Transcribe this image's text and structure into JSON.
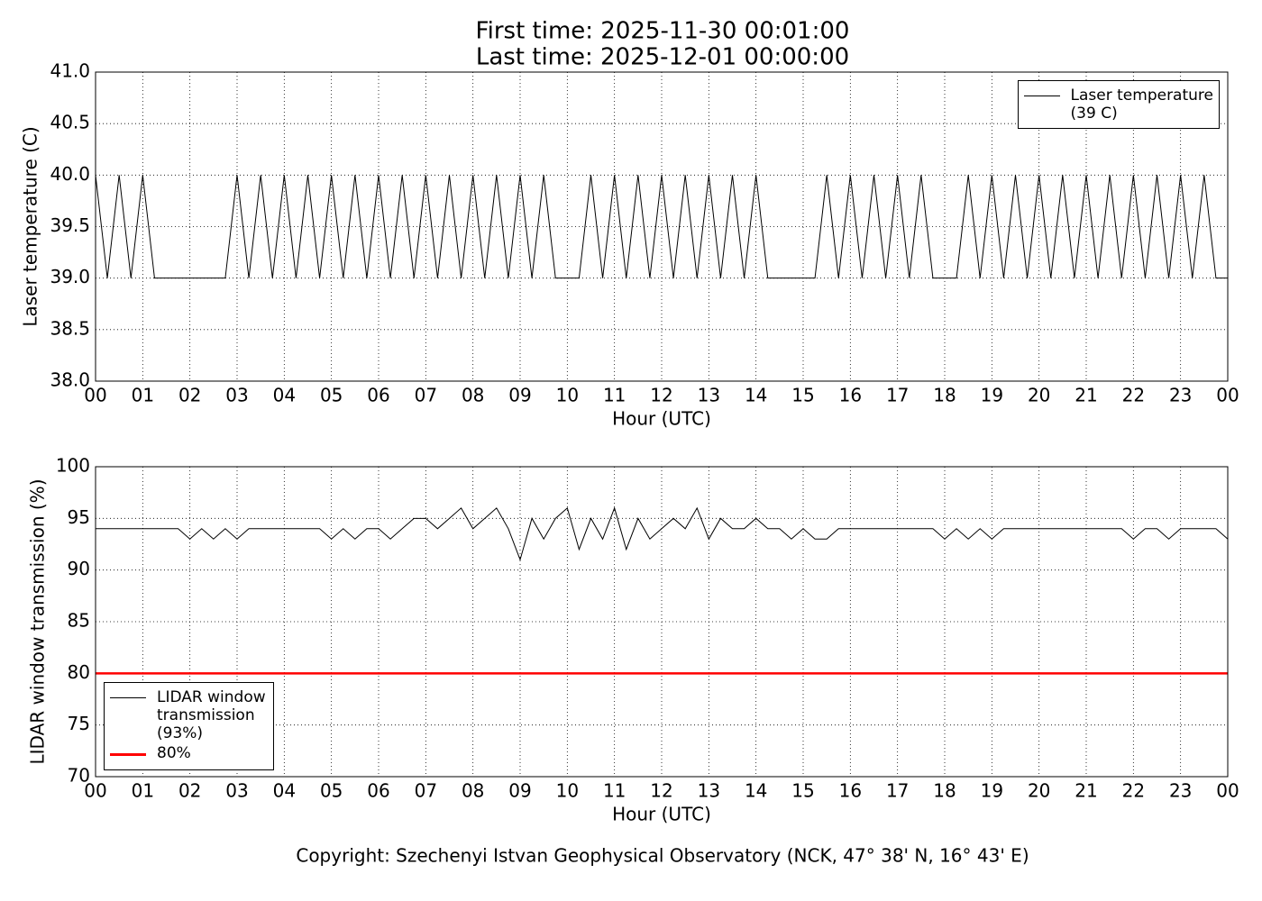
{
  "chart_data": [
    {
      "type": "line",
      "title": "First time: 2025-11-30 00:01:00",
      "subtitle": "Last time: 2025-12-01 00:00:00",
      "x_label": "Hour (UTC)",
      "y_label": "Laser temperature (C)",
      "x": [
        0,
        0.25,
        0.5,
        0.75,
        1,
        1.25,
        1.5,
        1.75,
        2,
        2.25,
        2.5,
        2.75,
        3,
        3.25,
        3.5,
        3.75,
        4,
        4.25,
        4.5,
        4.75,
        5,
        5.25,
        5.5,
        5.75,
        6,
        6.25,
        6.5,
        6.75,
        7,
        7.25,
        7.5,
        7.75,
        8,
        8.25,
        8.5,
        8.75,
        9,
        9.25,
        9.5,
        9.75,
        10,
        10.25,
        10.5,
        10.75,
        11,
        11.25,
        11.5,
        11.75,
        12,
        12.25,
        12.5,
        12.75,
        13,
        13.25,
        13.5,
        13.75,
        14,
        14.25,
        14.5,
        14.75,
        15,
        15.25,
        15.5,
        15.75,
        16,
        16.25,
        16.5,
        16.75,
        17,
        17.25,
        17.5,
        17.75,
        18,
        18.25,
        18.5,
        18.75,
        19,
        19.25,
        19.5,
        19.75,
        20,
        20.25,
        20.5,
        20.75,
        21,
        21.25,
        21.5,
        21.75,
        22,
        22.25,
        22.5,
        22.75,
        23,
        23.25,
        23.5,
        23.75,
        24
      ],
      "series": [
        {
          "name": "Laser temperature\n(39 C)",
          "color": "#000000",
          "values": [
            40,
            39,
            40,
            39,
            40,
            39,
            39,
            39,
            39,
            39,
            39,
            39,
            40,
            39,
            40,
            39,
            40,
            39,
            40,
            39,
            40,
            39,
            40,
            39,
            40,
            39,
            40,
            39,
            40,
            39,
            40,
            39,
            40,
            39,
            40,
            39,
            40,
            39,
            40,
            39,
            39,
            39,
            40,
            39,
            40,
            39,
            40,
            39,
            40,
            39,
            40,
            39,
            40,
            39,
            40,
            39,
            40,
            39,
            39,
            39,
            39,
            39,
            40,
            39,
            40,
            39,
            40,
            39,
            40,
            39,
            40,
            39,
            39,
            39,
            40,
            39,
            40,
            39,
            40,
            39,
            40,
            39,
            40,
            39,
            40,
            39,
            40,
            39,
            40,
            39,
            40,
            39,
            40,
            39,
            40,
            39,
            39
          ]
        }
      ],
      "xlim": [
        0,
        24
      ],
      "xticks": [
        {
          "value": 0,
          "label": "00"
        },
        {
          "value": 1,
          "label": "01"
        },
        {
          "value": 2,
          "label": "02"
        },
        {
          "value": 3,
          "label": "03"
        },
        {
          "value": 4,
          "label": "04"
        },
        {
          "value": 5,
          "label": "05"
        },
        {
          "value": 6,
          "label": "06"
        },
        {
          "value": 7,
          "label": "07"
        },
        {
          "value": 8,
          "label": "08"
        },
        {
          "value": 9,
          "label": "09"
        },
        10,
        11,
        12,
        13,
        14,
        15,
        16,
        17,
        18,
        19,
        20,
        21,
        22,
        23,
        {
          "value": 24,
          "label": "00"
        }
      ],
      "ylim": [
        38,
        41
      ],
      "yticks": [
        {
          "value": 38,
          "label": "38.0"
        },
        38.5,
        {
          "value": 39,
          "label": "39.0"
        },
        39.5,
        {
          "value": 40,
          "label": "40.0"
        },
        40.5,
        {
          "value": 41,
          "label": "41.0"
        }
      ],
      "grid": true,
      "legend": "upper right"
    },
    {
      "type": "line",
      "x_label": "Hour (UTC)",
      "y_label": "LIDAR window transmission (%)",
      "x": [
        0,
        0.25,
        0.5,
        0.75,
        1,
        1.25,
        1.5,
        1.75,
        2,
        2.25,
        2.5,
        2.75,
        3,
        3.25,
        3.5,
        3.75,
        4,
        4.25,
        4.5,
        4.75,
        5,
        5.25,
        5.5,
        5.75,
        6,
        6.25,
        6.5,
        6.75,
        7,
        7.25,
        7.5,
        7.75,
        8,
        8.25,
        8.5,
        8.75,
        9,
        9.25,
        9.5,
        9.75,
        10,
        10.25,
        10.5,
        10.75,
        11,
        11.25,
        11.5,
        11.75,
        12,
        12.25,
        12.5,
        12.75,
        13,
        13.25,
        13.5,
        13.75,
        14,
        14.25,
        14.5,
        14.75,
        15,
        15.25,
        15.5,
        15.75,
        16,
        16.25,
        16.5,
        16.75,
        17,
        17.25,
        17.5,
        17.75,
        18,
        18.25,
        18.5,
        18.75,
        19,
        19.25,
        19.5,
        19.75,
        20,
        20.25,
        20.5,
        20.75,
        21,
        21.25,
        21.5,
        21.75,
        22,
        22.25,
        22.5,
        22.75,
        23,
        23.25,
        23.5,
        23.75,
        24
      ],
      "series": [
        {
          "name": "LIDAR window\ntransmission\n(93%)",
          "color": "#000000",
          "values": [
            94,
            94,
            94,
            94,
            94,
            94,
            94,
            94,
            93,
            94,
            93,
            94,
            93,
            94,
            94,
            94,
            94,
            94,
            94,
            94,
            93,
            94,
            93,
            94,
            94,
            93,
            94,
            95,
            95,
            94,
            95,
            96,
            94,
            95,
            96,
            94,
            91,
            95,
            93,
            95,
            96,
            92,
            95,
            93,
            96,
            92,
            95,
            93,
            94,
            95,
            94,
            96,
            93,
            95,
            94,
            94,
            95,
            94,
            94,
            93,
            94,
            93,
            93,
            94,
            94,
            94,
            94,
            94,
            94,
            94,
            94,
            94,
            93,
            94,
            93,
            94,
            93,
            94,
            94,
            94,
            94,
            94,
            94,
            94,
            94,
            94,
            94,
            94,
            93,
            94,
            94,
            93,
            94,
            94,
            94,
            94,
            93
          ]
        }
      ],
      "threshold": {
        "name": "80%",
        "color": "#ff0000",
        "value": 80
      },
      "xlim": [
        0,
        24
      ],
      "xticks": [
        {
          "value": 0,
          "label": "00"
        },
        {
          "value": 1,
          "label": "01"
        },
        {
          "value": 2,
          "label": "02"
        },
        {
          "value": 3,
          "label": "03"
        },
        {
          "value": 4,
          "label": "04"
        },
        {
          "value": 5,
          "label": "05"
        },
        {
          "value": 6,
          "label": "06"
        },
        {
          "value": 7,
          "label": "07"
        },
        {
          "value": 8,
          "label": "08"
        },
        {
          "value": 9,
          "label": "09"
        },
        10,
        11,
        12,
        13,
        14,
        15,
        16,
        17,
        18,
        19,
        20,
        21,
        22,
        23,
        {
          "value": 24,
          "label": "00"
        }
      ],
      "ylim": [
        70,
        100
      ],
      "yticks": [
        70,
        75,
        80,
        85,
        90,
        95,
        100
      ],
      "grid": true,
      "legend": "lower left"
    }
  ],
  "footer": "Copyright: Szechenyi Istvan Geophysical Observatory (NCK, 47° 38' N, 16° 43' E)"
}
